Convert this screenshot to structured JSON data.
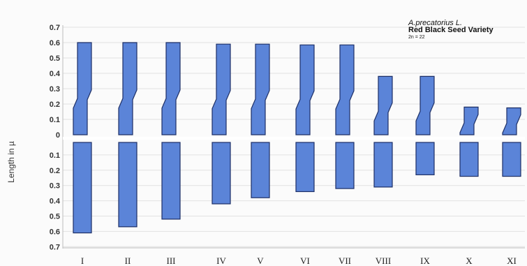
{
  "chart_data": {
    "type": "bar",
    "title": "A.precatorius L.",
    "subtitle": "Red Black Seed Variety",
    "note": "2n = 22",
    "ylabel": "Length in µ",
    "ylim": [
      0,
      0.7
    ],
    "y_ticks_upper": [
      "0.7",
      "0.6",
      "0.5",
      "0.4",
      "0.3",
      "0.2",
      "0.1",
      "0"
    ],
    "y_ticks_lower": [
      "0.1",
      "0.2",
      "0.3",
      "0.4",
      "0.5",
      "0.6",
      "0.7"
    ],
    "categories": [
      "I",
      "II",
      "III",
      "IV",
      "V",
      "VI",
      "VII",
      "VIII",
      "IX",
      "X",
      "XI"
    ],
    "series": [
      {
        "values": [
          0.6,
          0.6,
          0.6,
          0.59,
          0.59,
          0.585,
          0.585,
          0.38,
          0.38,
          0.18,
          0.175
        ]
      },
      {
        "values": [
          0.61,
          0.57,
          0.52,
          0.42,
          0.38,
          0.34,
          0.32,
          0.31,
          0.23,
          0.24,
          0.24
        ]
      }
    ],
    "bar_color": "#5b84d8",
    "bar_stroke": "#1d2f66",
    "grid": true
  }
}
